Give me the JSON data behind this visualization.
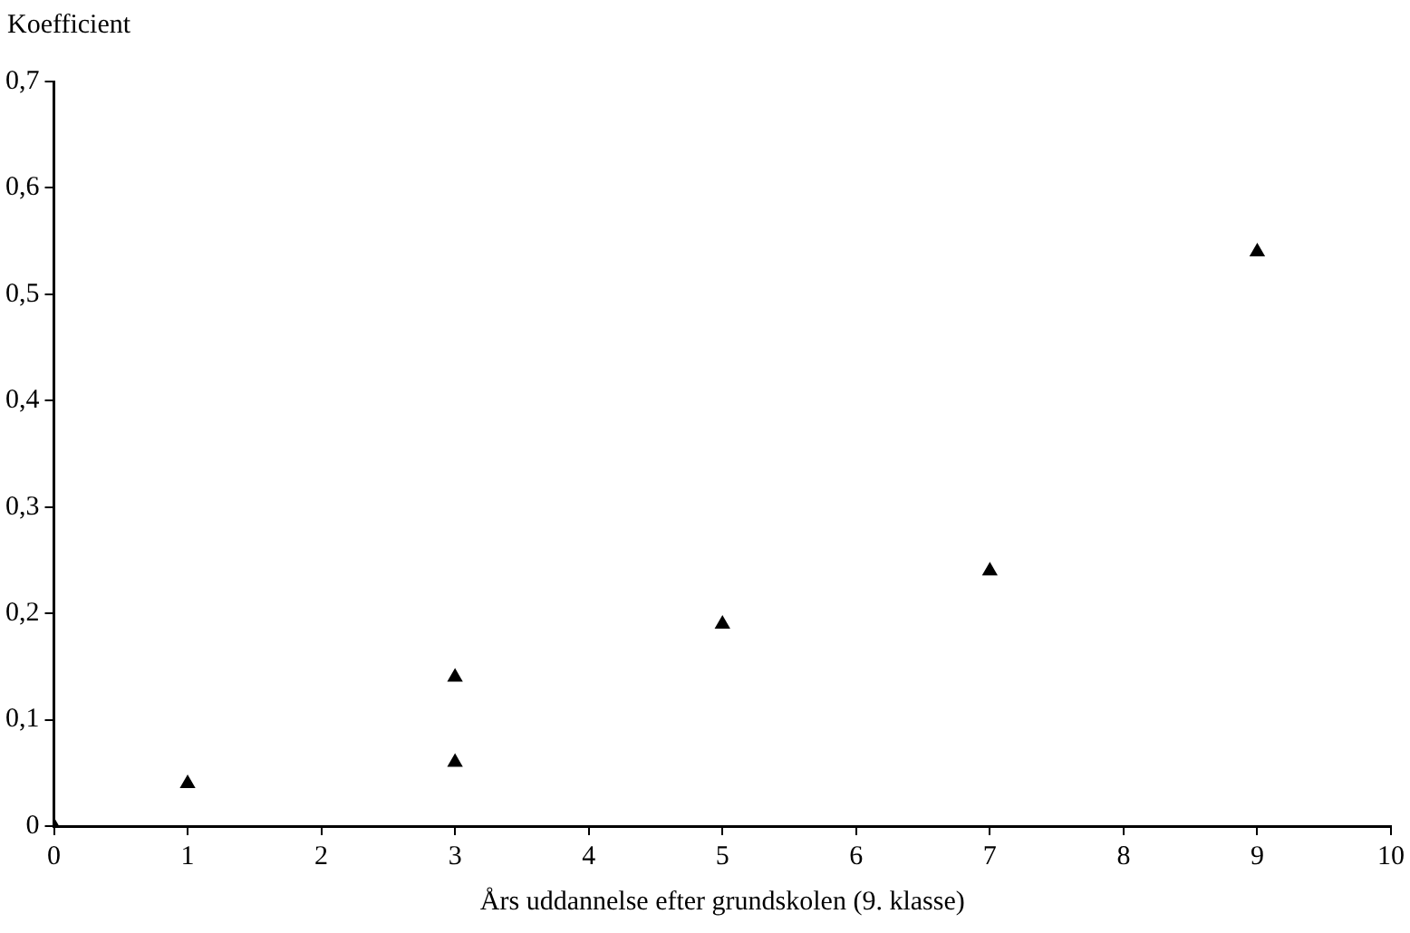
{
  "chart_data": {
    "type": "scatter",
    "ylabel": "Koefficient",
    "xlabel": "Års uddannelse efter grundskolen (9. klasse)",
    "series": [
      {
        "color": "#000000",
        "x": [
          0,
          1,
          3,
          3,
          5,
          7,
          9
        ],
        "values": [
          0,
          0.04,
          0.14,
          0.06,
          0.19,
          0.24,
          0.54
        ]
      }
    ],
    "xlim": [
      0,
      10
    ],
    "xticks": [
      0,
      1,
      2,
      3,
      4,
      5,
      6,
      7,
      8,
      9,
      10
    ],
    "ylim": [
      0,
      0.7
    ],
    "yticks": [
      {
        "value": 0,
        "label": "0"
      },
      {
        "value": 0.1,
        "label": "0,1"
      },
      {
        "value": 0.2,
        "label": "0,2"
      },
      {
        "value": 0.3,
        "label": "0,3"
      },
      {
        "value": 0.4,
        "label": "0,4"
      },
      {
        "value": 0.5,
        "label": "0,5"
      },
      {
        "value": 0.6,
        "label": "0,6"
      },
      {
        "value": 0.7,
        "label": "0,7"
      }
    ],
    "grid": false,
    "legend": false,
    "marker": "triangle"
  }
}
